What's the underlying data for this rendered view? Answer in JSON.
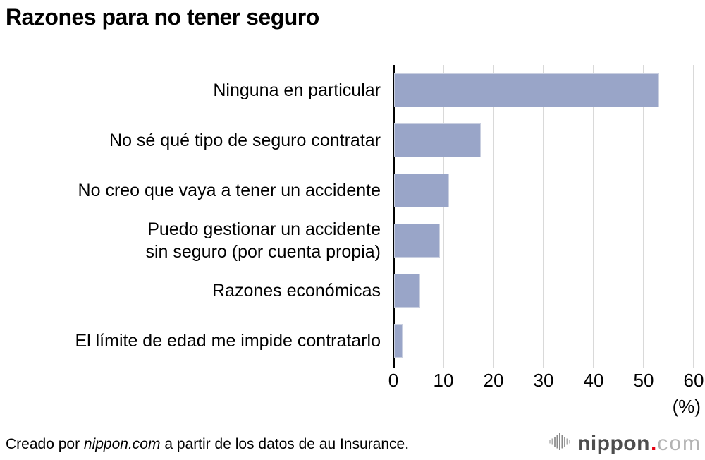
{
  "chart_data": {
    "type": "bar",
    "orientation": "horizontal",
    "title": "Razones para no tener seguro",
    "categories": [
      [
        "Ninguna en particular"
      ],
      [
        "No sé qué tipo de seguro contratar"
      ],
      [
        "No creo que vaya a tener un accidente"
      ],
      [
        "Puedo gestionar un accidente",
        "sin seguro (por cuenta propia)"
      ],
      [
        "Razones económicas"
      ],
      [
        "El límite de edad me impide contratarlo"
      ]
    ],
    "values": [
      53,
      17.3,
      11,
      9.2,
      5.2,
      1.7
    ],
    "xlim": [
      0,
      60
    ],
    "x_ticks": [
      0,
      10,
      20,
      30,
      40,
      50,
      60
    ],
    "unit_label": "(%)",
    "bar_color": "#99a5c8",
    "gridline_color": "#d9d9d9",
    "grid": true,
    "legend": "none"
  },
  "footer": {
    "credit_prefix": "Creado por ",
    "credit_brand": "nippon.com",
    "credit_suffix": " a partir de los datos de au Insurance."
  },
  "logo": {
    "name": "nippon",
    "dot": ".",
    "tld": "com"
  }
}
